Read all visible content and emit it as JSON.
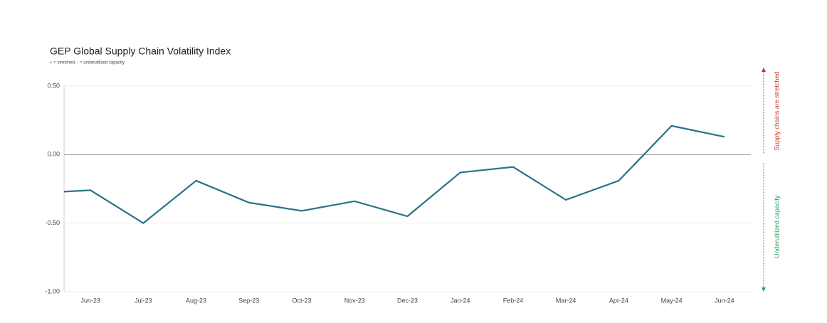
{
  "chart_data": {
    "type": "line",
    "title": "GEP Global Supply Chain Volatility Index",
    "subtitle": "+ = stretched, - = underutilized capacity",
    "categories": [
      null,
      "Jun-23",
      "Jul-23",
      "Aug-23",
      "Sep-23",
      "Oct-23",
      "Nov-23",
      "Dec-23",
      "Jan-24",
      "Feb-24",
      "Mar-24",
      "Apr-24",
      "May-24",
      "Jun-24"
    ],
    "series": [
      {
        "name": "GEP Global Supply Chain Volatility Index",
        "color": "#2a7386",
        "values": [
          -0.28,
          -0.26,
          -0.5,
          -0.19,
          -0.35,
          -0.41,
          -0.34,
          -0.45,
          -0.13,
          -0.09,
          -0.33,
          -0.19,
          0.21,
          0.13
        ]
      }
    ],
    "ylim": [
      -1.0,
      0.5
    ],
    "yticks": [
      {
        "value": -1.0,
        "label": "-1.00"
      },
      {
        "value": -0.5,
        "label": "-0.50"
      },
      {
        "value": 0,
        "label": "0.00"
      },
      {
        "value": 0.5,
        "label": "0.50"
      }
    ],
    "grid": true,
    "annotations": [
      {
        "text": "Supply chains are stretched",
        "color": "#c0392b"
      },
      {
        "text": "Underutilized capacity",
        "color": "#27a05a"
      }
    ]
  }
}
